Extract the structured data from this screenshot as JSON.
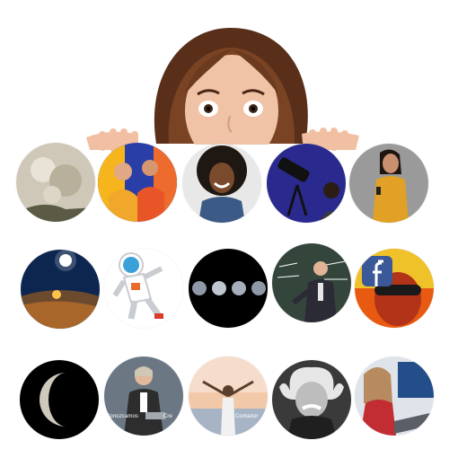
{
  "collage": {
    "hero": {
      "subject": "peeking-woman-icon"
    },
    "thumbnails": [
      {
        "row": 1,
        "col": 1,
        "icon": "full-moon-icon"
      },
      {
        "row": 1,
        "col": 2,
        "icon": "students-group-icon"
      },
      {
        "row": 1,
        "col": 3,
        "icon": "smiling-woman-icon"
      },
      {
        "row": 1,
        "col": 4,
        "icon": "telescope-icon"
      },
      {
        "row": 1,
        "col": 5,
        "icon": "woman-phone-icon"
      },
      {
        "row": 2,
        "col": 1,
        "icon": "night-camp-icon"
      },
      {
        "row": 2,
        "col": 2,
        "icon": "astronaut-icon"
      },
      {
        "row": 2,
        "col": 3,
        "icon": "moon-phases-icon"
      },
      {
        "row": 2,
        "col": 4,
        "icon": "professor-blackboard-icon"
      },
      {
        "row": 2,
        "col": 5,
        "icon": "facebook-woman-icon"
      },
      {
        "row": 3,
        "col": 1,
        "icon": "gibbous-moon-icon"
      },
      {
        "row": 3,
        "col": 2,
        "icon": "businesswoman-tablet-icon"
      },
      {
        "row": 3,
        "col": 3,
        "icon": "woman-beach-sunset-icon"
      },
      {
        "row": 3,
        "col": 4,
        "icon": "einstein-portrait-icon"
      },
      {
        "row": 3,
        "col": 5,
        "icon": "woman-laptop-icon"
      }
    ],
    "captions": {
      "c1": "Conozcamos",
      "c2": "Cre",
      "c3": "Contador"
    }
  }
}
